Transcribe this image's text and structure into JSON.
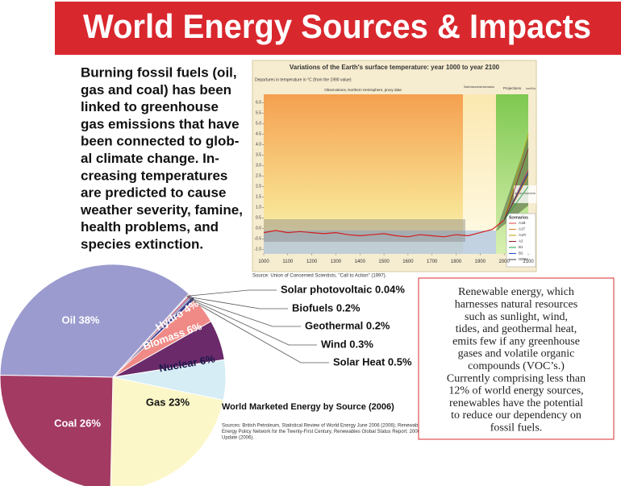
{
  "header": {
    "title": "World Energy Sources & Impacts"
  },
  "intro": {
    "lines": [
      "Burning fossil fuels (oil,",
      "gas and coal) has been",
      "linked to greenhouse",
      "gas emissions that have",
      "been connected to glob-",
      "al climate change. In-",
      "creasing temperatures",
      "are predicted to cause",
      "weather severity, famine,",
      "health problems, and",
      "species extinction."
    ]
  },
  "callout": {
    "lines": [
      "Renewable energy, which",
      "harnesses natural resources",
      "such as sunlight, wind,",
      "tides, and geothermal heat,",
      "emits few if any greenhouse",
      "gases and volatile organic",
      "compounds (VOC’s.)",
      "Currently comprising less than",
      "12% of world energy sources,",
      "renewables have the potential",
      "to reduce our dependency on",
      "fossil fuels."
    ]
  },
  "sources": {
    "lines": [
      "Sources: British Petroleum, Statistical Review of World Energy June 2006 (2006); Renewable",
      "Energy Policy Network for the Twenty-First Century, Renewables Global Status Report: 2006",
      "Update (2006)."
    ]
  },
  "chart_data": [
    {
      "type": "line",
      "title": "Variations of the Earth's surface temperature: year 1000 to year 2100",
      "y_label": "Departures in temperature in °C (from the 1990 value)",
      "regions": [
        "Observations, Northern Hemisphere, proxy data",
        "Global instrumental observations",
        "Projections"
      ],
      "annotations": [
        "Several models all SRES envelope",
        "Bars show the range in year 2100 produced by several models"
      ],
      "legend_title": "Scenarios",
      "source": "Source: Union of Concerned Scientists, \"Call to Action\" (1997).",
      "xlim": [
        1000,
        2100
      ],
      "xticks": [
        1000,
        1100,
        1200,
        1300,
        1400,
        1500,
        1600,
        1700,
        1800,
        1900,
        2000,
        2100
      ],
      "ylim": [
        -1.2,
        6.4
      ],
      "yticks": [
        {
          "value": -1,
          "label": "-1.0"
        },
        -0.5,
        {
          "value": 0,
          "label": "0.0"
        },
        0.5,
        {
          "value": 1,
          "label": "1.0"
        },
        1.5,
        {
          "value": 2,
          "label": "2.0"
        },
        2.5,
        {
          "value": 3,
          "label": "3.0"
        },
        3.5,
        {
          "value": 4,
          "label": "4.0"
        },
        4.5,
        {
          "value": 5,
          "label": "5.0"
        },
        5.5,
        {
          "value": 6,
          "label": "6.0"
        }
      ],
      "observations": {
        "color": "#d02020",
        "x": [
          1000,
          1050,
          1100,
          1150,
          1200,
          1250,
          1300,
          1350,
          1400,
          1450,
          1500,
          1550,
          1600,
          1650,
          1700,
          1750,
          1800,
          1850,
          1900,
          1950,
          2000
        ],
        "values": [
          -0.2,
          -0.1,
          -0.2,
          -0.15,
          -0.2,
          -0.25,
          -0.2,
          -0.3,
          -0.35,
          -0.3,
          -0.25,
          -0.35,
          -0.4,
          -0.3,
          -0.35,
          -0.4,
          -0.3,
          -0.35,
          -0.2,
          -0.05,
          0.4
        ]
      },
      "series": [
        {
          "name": "A1B",
          "color": "#e04040",
          "x": [
            2000,
            2100
          ],
          "values": [
            0.4,
            2.8
          ]
        },
        {
          "name": "A1T",
          "color": "#e08020",
          "x": [
            2000,
            2100
          ],
          "values": [
            0.4,
            2.5
          ]
        },
        {
          "name": "A1FI",
          "color": "#c0a000",
          "x": [
            2000,
            2100
          ],
          "values": [
            0.4,
            4.5
          ]
        },
        {
          "name": "A2",
          "color": "#8b2020",
          "x": [
            2000,
            2100
          ],
          "values": [
            0.4,
            3.8
          ]
        },
        {
          "name": "B1",
          "color": "#20a040",
          "x": [
            2000,
            2100
          ],
          "values": [
            0.4,
            2.0
          ]
        },
        {
          "name": "B2",
          "color": "#2050c0",
          "x": [
            2000,
            2100
          ],
          "values": [
            0.4,
            2.7
          ]
        },
        {
          "name": "IS92a",
          "color": "#404040",
          "x": [
            2000,
            2100
          ],
          "values": [
            0.4,
            2.6
          ]
        }
      ]
    },
    {
      "type": "pie",
      "title": "World Marketed Energy by Source (2006)",
      "values": [
        38,
        0.04,
        0.2,
        0.2,
        0.3,
        0.5,
        4,
        6,
        6,
        23,
        26
      ],
      "value_labels": [
        "Oil 38%",
        "Solar photovoltaic 0.04%",
        "Biofuels 0.2%",
        "Geothermal 0.2%",
        "Wind 0.3%",
        "Solar Heat 0.5%",
        "Hydro 4%",
        "Biomass 6%",
        "Nuclear 6%",
        "Gas 23%",
        "Coal 26%"
      ],
      "colors": [
        "#9b9bcf",
        "#303070",
        "#e8e8e8",
        "#c04070",
        "#a0a0c0",
        "#3a3a8a",
        "#ef8a86",
        "#6b2a6a",
        "#d6edf5",
        "#fbf7c8",
        "#a33a62"
      ]
    }
  ]
}
